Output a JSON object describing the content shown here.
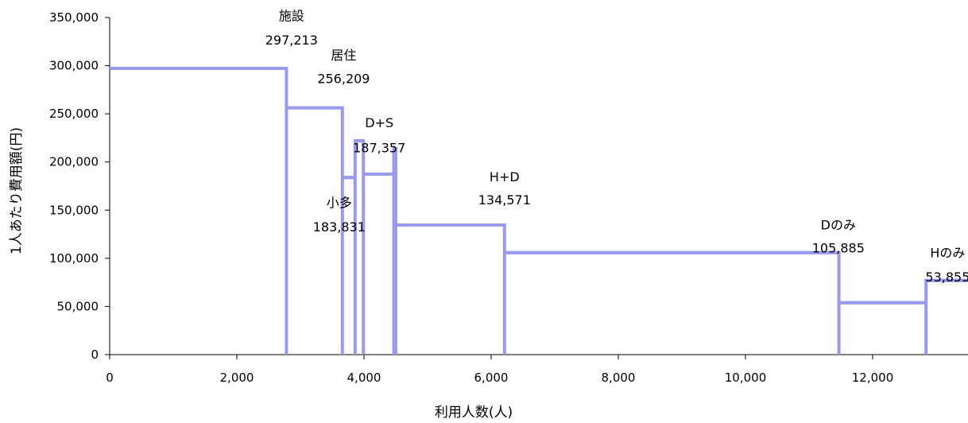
{
  "chart_data": {
    "type": "step",
    "xlabel": "利用人数(人)",
    "ylabel": "1人あたり費用額(円)",
    "xlim": [
      0,
      13500
    ],
    "ylim": [
      0,
      350000
    ],
    "x_ticks": [
      0,
      2000,
      4000,
      6000,
      8000,
      10000,
      12000
    ],
    "x_tick_labels": [
      "0",
      "2,000",
      "4,000",
      "6,000",
      "8,000",
      "10,000",
      "12,000"
    ],
    "y_ticks": [
      0,
      50000,
      100000,
      150000,
      200000,
      250000,
      300000,
      350000
    ],
    "y_tick_labels": [
      "0",
      "50,000",
      "100,000",
      "150,000",
      "200,000",
      "250,000",
      "300,000",
      "350,000"
    ],
    "grid": false,
    "series_color": "#9999f0",
    "segments": [
      {
        "x_start": 0,
        "x_end": 2780,
        "value": 297213
      },
      {
        "x_start": 2780,
        "x_end": 3660,
        "value": 256209
      },
      {
        "x_start": 3660,
        "x_end": 3860,
        "value": 183831
      },
      {
        "x_start": 3860,
        "x_end": 3990,
        "value": 222000
      },
      {
        "x_start": 3990,
        "x_end": 4470,
        "value": 187357
      },
      {
        "x_start": 4470,
        "x_end": 4500,
        "value": 214000
      },
      {
        "x_start": 4500,
        "x_end": 6210,
        "value": 134571
      },
      {
        "x_start": 6210,
        "x_end": 11470,
        "value": 105885
      },
      {
        "x_start": 11470,
        "x_end": 12840,
        "value": 53855
      },
      {
        "x_start": 12840,
        "x_end": 13500,
        "value": 77000
      }
    ],
    "annotations": [
      {
        "name": "施設",
        "value_text": "297,213",
        "x": 2860,
        "y_name": 352000,
        "y_value": 327000
      },
      {
        "name": "居住",
        "value_text": "256,209",
        "x": 3680,
        "y_name": 311000,
        "y_value": 287000
      },
      {
        "name": "D+S",
        "value_text": "187,357",
        "x": 4240,
        "y_name": 241000,
        "y_value": 215000
      },
      {
        "name": "小多",
        "value_text": "183,831",
        "x": 3610,
        "y_name": 158000,
        "y_value": 133000
      },
      {
        "name": "H+D",
        "value_text": "134,571",
        "x": 6210,
        "y_name": 185000,
        "y_value": 161000
      },
      {
        "name": "Dのみ",
        "value_text": "105,885",
        "x": 11460,
        "y_name": 135000,
        "y_value": 111000
      },
      {
        "name": "Hのみ",
        "value_text": "53,855",
        "x": 13180,
        "y_name": 106000,
        "y_value": 81000
      }
    ]
  }
}
